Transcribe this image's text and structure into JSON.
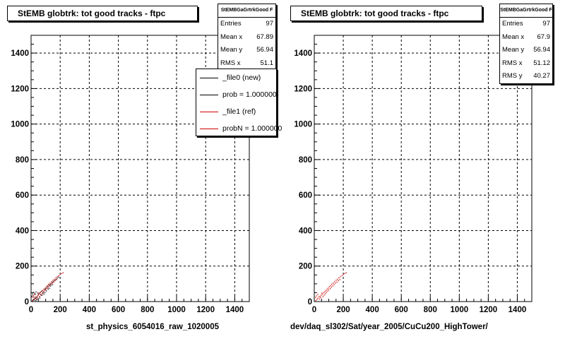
{
  "colors": {
    "new": "#000000",
    "ref": "#cc0000",
    "frame": "#000000"
  },
  "chart_data": [
    {
      "type": "scatter",
      "title": "StEMB globtrk: tot good tracks - ftpc",
      "xlabel": "st_physics_6054016_raw_1020005",
      "ylabel": "",
      "xlim": [
        0,
        1500
      ],
      "ylim": [
        0,
        1500
      ],
      "xticks": [
        0,
        200,
        400,
        600,
        800,
        1000,
        1200,
        1400
      ],
      "yticks": [
        0,
        200,
        400,
        600,
        800,
        1000,
        1200,
        1400
      ],
      "grid": true,
      "stats": {
        "name": "StEMBGaGrtrkGood F",
        "rows": [
          {
            "label": "Entries",
            "value": "97"
          },
          {
            "label": "Mean x",
            "value": "67.89"
          },
          {
            "label": "Mean y",
            "value": "56.94"
          },
          {
            "label": "RMS x",
            "value": "51.1"
          }
        ]
      },
      "legend": {
        "placement": "top-right",
        "entries": [
          {
            "text": "_file0 (new)",
            "color": "#000000"
          },
          {
            "text": "prob = 1.000000",
            "color": "#000000"
          },
          {
            "text": "_file1 (ref)",
            "color": "#cc0000"
          },
          {
            "text": "probN = 1.000000",
            "color": "#cc0000"
          }
        ]
      },
      "series": [
        {
          "color": "#000000",
          "points": [
            [
              8,
              5
            ],
            [
              15,
              10
            ],
            [
              22,
              14
            ],
            [
              30,
              18
            ],
            [
              5,
              30
            ],
            [
              12,
              38
            ],
            [
              20,
              25
            ],
            [
              28,
              40
            ],
            [
              35,
              22
            ],
            [
              42,
              30
            ],
            [
              50,
              38
            ],
            [
              10,
              48
            ],
            [
              18,
              52
            ],
            [
              26,
              46
            ],
            [
              34,
              55
            ],
            [
              45,
              48
            ],
            [
              55,
              45
            ],
            [
              62,
              52
            ],
            [
              70,
              58
            ],
            [
              78,
              62
            ],
            [
              85,
              55
            ],
            [
              92,
              68
            ],
            [
              100,
              72
            ],
            [
              108,
              78
            ],
            [
              115,
              85
            ],
            [
              122,
              92
            ],
            [
              130,
              96
            ],
            [
              138,
              100
            ],
            [
              145,
              108
            ],
            [
              152,
              112
            ],
            [
              160,
              118
            ],
            [
              170,
              125
            ],
            [
              180,
              132
            ],
            [
              190,
              138
            ],
            [
              40,
              12
            ],
            [
              60,
              20
            ],
            [
              75,
              35
            ],
            [
              88,
              42
            ],
            [
              95,
              50
            ],
            [
              105,
              60
            ],
            [
              118,
              70
            ],
            [
              125,
              75
            ],
            [
              135,
              88
            ],
            [
              148,
              95
            ],
            [
              20,
              8
            ],
            [
              32,
              6
            ],
            [
              48,
              16
            ],
            [
              58,
              28
            ],
            [
              66,
              40
            ],
            [
              80,
              48
            ]
          ]
        },
        {
          "color": "#cc0000",
          "points": [
            [
              10,
              6
            ],
            [
              18,
              12
            ],
            [
              25,
              18
            ],
            [
              32,
              26
            ],
            [
              40,
              30
            ],
            [
              48,
              36
            ],
            [
              56,
              42
            ],
            [
              64,
              50
            ],
            [
              72,
              56
            ],
            [
              80,
              62
            ],
            [
              88,
              70
            ],
            [
              96,
              76
            ],
            [
              104,
              84
            ],
            [
              112,
              90
            ],
            [
              120,
              98
            ],
            [
              130,
              104
            ],
            [
              140,
              112
            ],
            [
              150,
              120
            ],
            [
              160,
              126
            ],
            [
              170,
              134
            ],
            [
              180,
              140
            ],
            [
              190,
              146
            ],
            [
              200,
              152
            ],
            [
              210,
              158
            ],
            [
              220,
              162
            ],
            [
              8,
              24
            ],
            [
              16,
              32
            ],
            [
              24,
              40
            ],
            [
              36,
              14
            ],
            [
              44,
              22
            ],
            [
              52,
              48
            ],
            [
              60,
              28
            ],
            [
              68,
              36
            ],
            [
              76,
              44
            ],
            [
              84,
              52
            ],
            [
              92,
              60
            ],
            [
              100,
              66
            ],
            [
              110,
              74
            ],
            [
              118,
              82
            ],
            [
              128,
              88
            ],
            [
              136,
              96
            ],
            [
              146,
              104
            ],
            [
              156,
              110
            ],
            [
              166,
              118
            ],
            [
              176,
              124
            ]
          ]
        }
      ]
    },
    {
      "type": "scatter",
      "title": "StEMB globtrk: tot good tracks - ftpc",
      "xlabel": "dev/daq_sl302/Sat/year_2005/CuCu200_HighTower/",
      "ylabel": "",
      "xlim": [
        0,
        1500
      ],
      "ylim": [
        0,
        1500
      ],
      "xticks": [
        0,
        200,
        400,
        600,
        800,
        1000,
        1200,
        1400
      ],
      "yticks": [
        0,
        200,
        400,
        600,
        800,
        1000,
        1200,
        1400
      ],
      "grid": true,
      "stats": {
        "name": "StEMBGaGrtrkGood F",
        "rows": [
          {
            "label": "Entries",
            "value": "97"
          },
          {
            "label": "Mean x",
            "value": "67.9"
          },
          {
            "label": "Mean y",
            "value": "56.94"
          },
          {
            "label": "RMS x",
            "value": "51.12"
          },
          {
            "label": "RMS y",
            "value": "40.27"
          }
        ]
      },
      "series": [
        {
          "color": "#cc0000",
          "points": [
            [
              10,
              6
            ],
            [
              18,
              12
            ],
            [
              25,
              18
            ],
            [
              32,
              26
            ],
            [
              40,
              30
            ],
            [
              48,
              36
            ],
            [
              56,
              42
            ],
            [
              64,
              50
            ],
            [
              72,
              56
            ],
            [
              80,
              62
            ],
            [
              88,
              70
            ],
            [
              96,
              76
            ],
            [
              104,
              84
            ],
            [
              112,
              90
            ],
            [
              120,
              98
            ],
            [
              130,
              104
            ],
            [
              140,
              112
            ],
            [
              150,
              120
            ],
            [
              160,
              126
            ],
            [
              170,
              134
            ],
            [
              180,
              140
            ],
            [
              190,
              146
            ],
            [
              200,
              152
            ],
            [
              210,
              158
            ],
            [
              220,
              162
            ],
            [
              8,
              24
            ],
            [
              16,
              32
            ],
            [
              24,
              40
            ],
            [
              36,
              14
            ],
            [
              44,
              22
            ],
            [
              52,
              48
            ],
            [
              60,
              28
            ],
            [
              68,
              36
            ],
            [
              76,
              44
            ],
            [
              84,
              52
            ],
            [
              92,
              60
            ],
            [
              100,
              66
            ],
            [
              110,
              74
            ],
            [
              118,
              82
            ],
            [
              128,
              88
            ],
            [
              136,
              96
            ],
            [
              146,
              104
            ],
            [
              156,
              110
            ],
            [
              166,
              118
            ],
            [
              176,
              124
            ]
          ]
        }
      ]
    }
  ]
}
